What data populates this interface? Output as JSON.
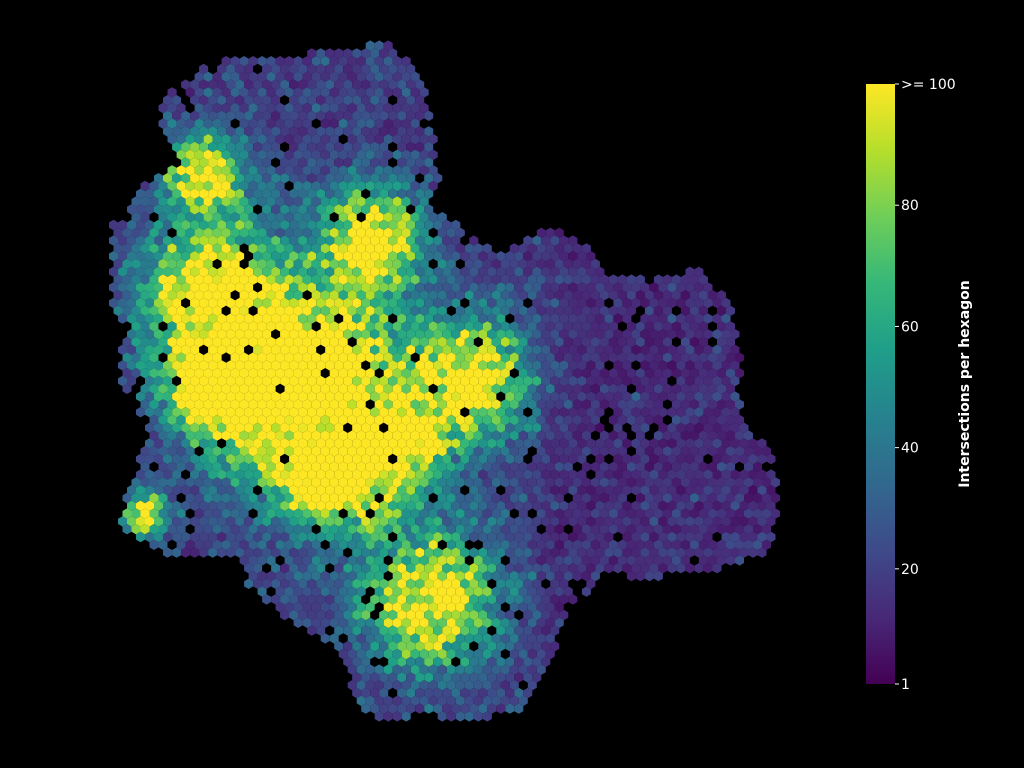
{
  "chart_data": {
    "type": "heatmap",
    "subtype": "hexbin",
    "title": "",
    "xlabel": "",
    "ylabel": "",
    "axes_visible": false,
    "grid": false,
    "background": "#000000",
    "colormap": "viridis",
    "colorbar": {
      "label": "Intersections per hexagon",
      "placement": "right",
      "range": [
        1,
        100
      ],
      "ticks": [
        1,
        20,
        40,
        60,
        80,
        100
      ],
      "tick_labels": [
        "1",
        "20",
        "40",
        "60",
        "80",
        ">= 100"
      ],
      "clipped_max_label": ">= 100"
    },
    "hotspots": [
      {
        "near": "north-west lobe",
        "value": 90
      },
      {
        "near": "north-centre",
        "value": 100
      },
      {
        "near": "west",
        "value": 100
      },
      {
        "near": "centre",
        "value": 95
      },
      {
        "near": "east-centre",
        "value": 100
      },
      {
        "near": "south-centre",
        "value": 100
      },
      {
        "near": "south-west edge",
        "value": 90
      }
    ],
    "value_range_shown": [
      1,
      100
    ]
  },
  "colors": {
    "background": "#000000",
    "text": "#ffffff",
    "viridis": [
      "#440154",
      "#482878",
      "#3e4a89",
      "#31688e",
      "#26828e",
      "#1f9e89",
      "#35b779",
      "#6ece58",
      "#b5de2b",
      "#fde725"
    ]
  }
}
